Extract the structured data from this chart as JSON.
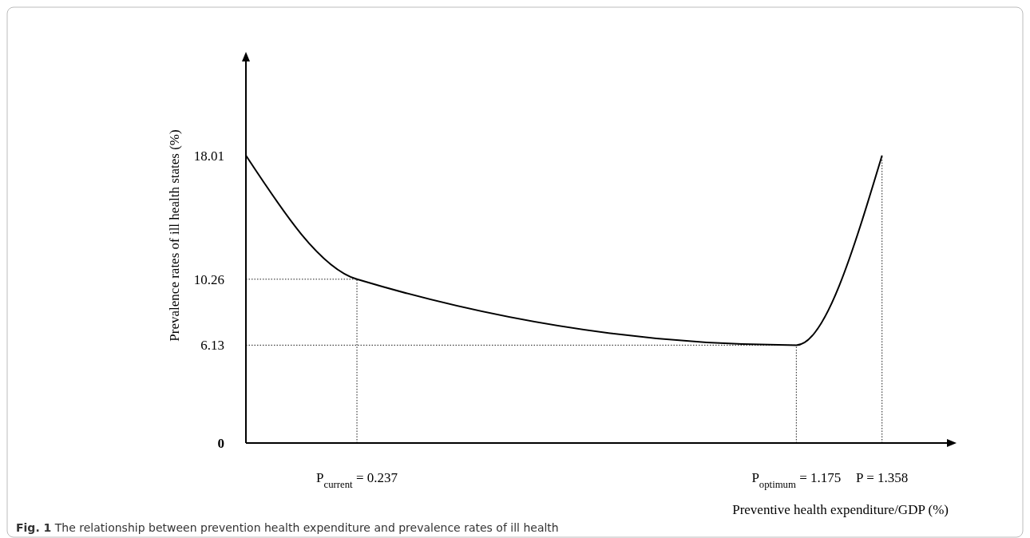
{
  "chart_data": {
    "type": "line",
    "title": "Fig. 1 The relationship between prevention health expenditure and prevalence rates of ill health",
    "xlabel": "Preventive health expenditure/GDP (%)",
    "ylabel": "Prevalence rates of ill health states (%)",
    "x": [
      0,
      0.237,
      1.175,
      1.358
    ],
    "series": [
      {
        "color": "#000000",
        "values": [
          18.01,
          10.26,
          6.13,
          18.01
        ]
      },
      {
        "color": "#000000",
        "x": [
          0,
          0.237
        ],
        "values": [
          10.26,
          10.26
        ],
        "line_style": "dotted"
      },
      {
        "color": "#000000",
        "x": [
          0.237,
          0.237
        ],
        "values": [
          0,
          10.26
        ],
        "line_style": "dotted"
      },
      {
        "color": "#000000",
        "x": [
          0,
          1.175
        ],
        "values": [
          6.13,
          6.13
        ],
        "line_style": "dotted"
      },
      {
        "color": "#000000",
        "x": [
          1.175,
          1.175
        ],
        "values": [
          0,
          6.13
        ],
        "line_style": "dotted"
      },
      {
        "color": "#000000",
        "x": [
          1.358,
          1.358
        ],
        "values": [
          0,
          18.01
        ],
        "line_style": "dotted"
      }
    ],
    "xlim": [
      0,
      1.5
    ],
    "ylim": [
      0,
      24
    ],
    "xticks": [
      {
        "value": 0.237,
        "label": "P$_{current}$ = 0.237"
      },
      {
        "value": 1.175,
        "label": "P$_{optimum}$ = 1.175"
      },
      {
        "value": 1.358,
        "label": "P = 1.358"
      }
    ],
    "yticks": [
      0,
      6.13,
      10.26,
      18.01
    ],
    "marker": "none",
    "line_style": "solid"
  }
}
